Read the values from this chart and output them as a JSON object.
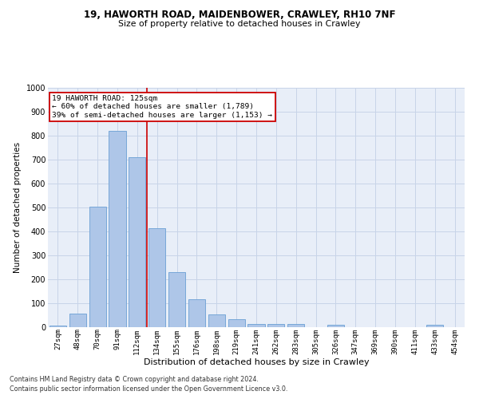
{
  "title1": "19, HAWORTH ROAD, MAIDENBOWER, CRAWLEY, RH10 7NF",
  "title2": "Size of property relative to detached houses in Crawley",
  "xlabel": "Distribution of detached houses by size in Crawley",
  "ylabel": "Number of detached properties",
  "bar_color": "#aec6e8",
  "bar_edge_color": "#6a9fd4",
  "categories": [
    "27sqm",
    "48sqm",
    "70sqm",
    "91sqm",
    "112sqm",
    "134sqm",
    "155sqm",
    "176sqm",
    "198sqm",
    "219sqm",
    "241sqm",
    "262sqm",
    "283sqm",
    "305sqm",
    "326sqm",
    "347sqm",
    "369sqm",
    "390sqm",
    "411sqm",
    "433sqm",
    "454sqm"
  ],
  "values": [
    8,
    57,
    505,
    820,
    710,
    415,
    230,
    117,
    55,
    32,
    15,
    14,
    14,
    0,
    11,
    0,
    0,
    0,
    0,
    11,
    0
  ],
  "vline_x": 4.5,
  "vline_color": "#cc0000",
  "annotation_line1": "19 HAWORTH ROAD: 125sqm",
  "annotation_line2": "← 60% of detached houses are smaller (1,789)",
  "annotation_line3": "39% of semi-detached houses are larger (1,153) →",
  "annotation_box_color": "#ffffff",
  "annotation_box_edge": "#cc0000",
  "ylim": [
    0,
    1000
  ],
  "yticks": [
    0,
    100,
    200,
    300,
    400,
    500,
    600,
    700,
    800,
    900,
    1000
  ],
  "grid_color": "#c8d4e8",
  "bg_color": "#e8eef8",
  "footer1": "Contains HM Land Registry data © Crown copyright and database right 2024.",
  "footer2": "Contains public sector information licensed under the Open Government Licence v3.0."
}
